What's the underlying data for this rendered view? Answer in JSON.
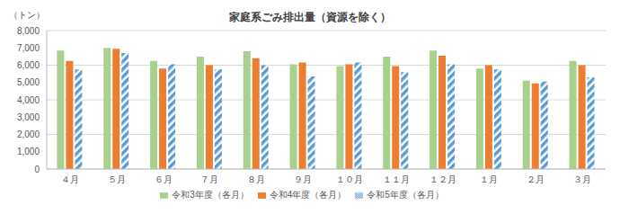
{
  "chart_data": {
    "type": "bar",
    "title": "家庭系ごみ排出量（資源を除く）",
    "y_label": "（トン）",
    "categories": [
      "４月",
      "５月",
      "６月",
      "７月",
      "８月",
      "９月",
      "１０月",
      "１１月",
      "１２月",
      "１月",
      "２月",
      "３月"
    ],
    "series": [
      {
        "name": "令和3年度（各月）",
        "color": "#a9d18e",
        "values": [
          6850,
          7000,
          6250,
          6500,
          6800,
          6050,
          5950,
          6500,
          6850,
          5800,
          5100,
          6250
        ]
      },
      {
        "name": "令和4年度（各月）",
        "color": "#ed7d31",
        "values": [
          6250,
          6950,
          5800,
          6000,
          6400,
          6150,
          6050,
          5950,
          6550,
          6000,
          4950,
          6000
        ]
      },
      {
        "name": "令和5年度（各月）",
        "color": "#5b9bd5",
        "values": [
          5750,
          6700,
          6050,
          5750,
          6000,
          5350,
          6150,
          5600,
          6050,
          5750,
          5050,
          5300
        ]
      }
    ],
    "ylim": [
      0,
      8000
    ],
    "yticks": [
      {
        "value": 0,
        "label": "0"
      },
      {
        "value": 1000,
        "label": "1,000"
      },
      {
        "value": 2000,
        "label": "2,000"
      },
      {
        "value": 3000,
        "label": "3,000"
      },
      {
        "value": 4000,
        "label": "4,000"
      },
      {
        "value": 5000,
        "label": "5,000"
      },
      {
        "value": 6000,
        "label": "6,000"
      },
      {
        "value": 7000,
        "label": "7,000"
      },
      {
        "value": 8000,
        "label": "8,000"
      }
    ],
    "grid": true,
    "legend": "bottom"
  }
}
